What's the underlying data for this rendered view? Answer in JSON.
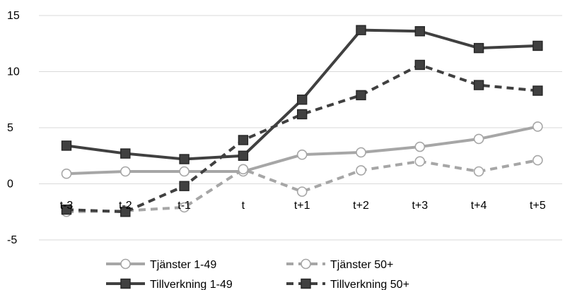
{
  "chart_data": {
    "type": "line",
    "title": "",
    "xlabel": "",
    "ylabel": "",
    "categories": [
      "t-3",
      "t-2",
      "t-1",
      "t",
      "t+1",
      "t+2",
      "t+3",
      "t+4",
      "t+5"
    ],
    "ylim": [
      -5,
      15
    ],
    "yticks": [
      -5,
      0,
      5,
      10,
      15
    ],
    "grid": "horizontal",
    "legend_position": "bottom",
    "series": [
      {
        "name": "Tjänster 1-49",
        "values": [
          0.9,
          1.1,
          1.1,
          1.1,
          2.6,
          2.8,
          3.3,
          4.0,
          5.1
        ],
        "color": "#a6a6a6",
        "line": "solid",
        "marker": "circle-open"
      },
      {
        "name": "Tjänster 50+",
        "values": [
          -2.5,
          -2.4,
          -2.1,
          1.3,
          -0.7,
          1.2,
          2.0,
          1.1,
          2.1
        ],
        "color": "#a6a6a6",
        "line": "dashed",
        "marker": "circle-open"
      },
      {
        "name": "Tillverkning 1-49",
        "values": [
          3.4,
          2.7,
          2.2,
          2.5,
          7.5,
          13.7,
          13.6,
          12.1,
          12.3
        ],
        "color": "#404040",
        "line": "solid",
        "marker": "square-filled"
      },
      {
        "name": "Tillverkning 50+",
        "values": [
          -2.3,
          -2.5,
          -0.2,
          3.9,
          6.2,
          7.9,
          10.6,
          8.8,
          8.3
        ],
        "color": "#404040",
        "line": "dashed",
        "marker": "square-filled"
      }
    ]
  }
}
